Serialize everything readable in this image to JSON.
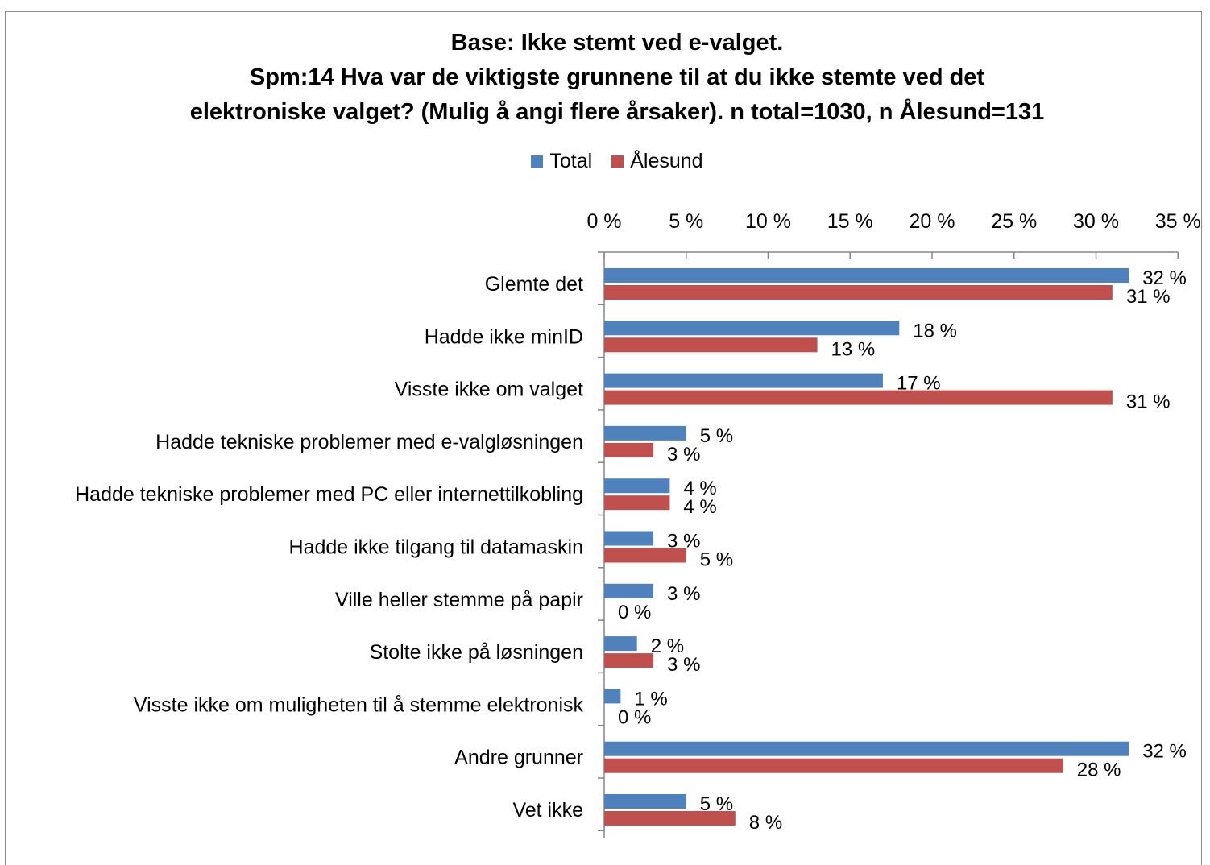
{
  "chart_data": {
    "type": "bar",
    "orientation": "horizontal",
    "title_lines": [
      "Base: Ikke stemt ved e-valget.",
      "Spm:14 Hva var de viktigste grunnene til at du ikke stemte ved det",
      "elektroniske valget? (Mulig å angi flere årsaker). n total=1030, n Ålesund=131"
    ],
    "xlim": [
      0,
      35
    ],
    "xticks": [
      0,
      5,
      10,
      15,
      20,
      25,
      30,
      35
    ],
    "tick_labels": [
      "0 %",
      "5 %",
      "10 %",
      "15 %",
      "20 %",
      "25 %",
      "30 %",
      "35 %"
    ],
    "legend_position": "top-center",
    "grid": false,
    "value_suffix": " %",
    "categories": [
      "Glemte det",
      "Hadde ikke minID",
      "Visste ikke om valget",
      "Hadde tekniske problemer med e-valgløsningen",
      "Hadde tekniske problemer med PC eller internettilkobling",
      "Hadde ikke tilgang til datamaskin",
      "Ville heller stemme på papir",
      "Stolte ikke på løsningen",
      "Visste ikke om muligheten til å stemme elektronisk",
      "Andre grunner",
      "Vet ikke"
    ],
    "series": [
      {
        "name": "Total",
        "color": "#4f81bd",
        "values": [
          32,
          18,
          17,
          5,
          4,
          3,
          3,
          2,
          1,
          32,
          5
        ]
      },
      {
        "name": "Ålesund",
        "color": "#c0504d",
        "values": [
          31,
          13,
          31,
          3,
          4,
          5,
          0,
          3,
          0,
          28,
          8
        ]
      }
    ]
  }
}
